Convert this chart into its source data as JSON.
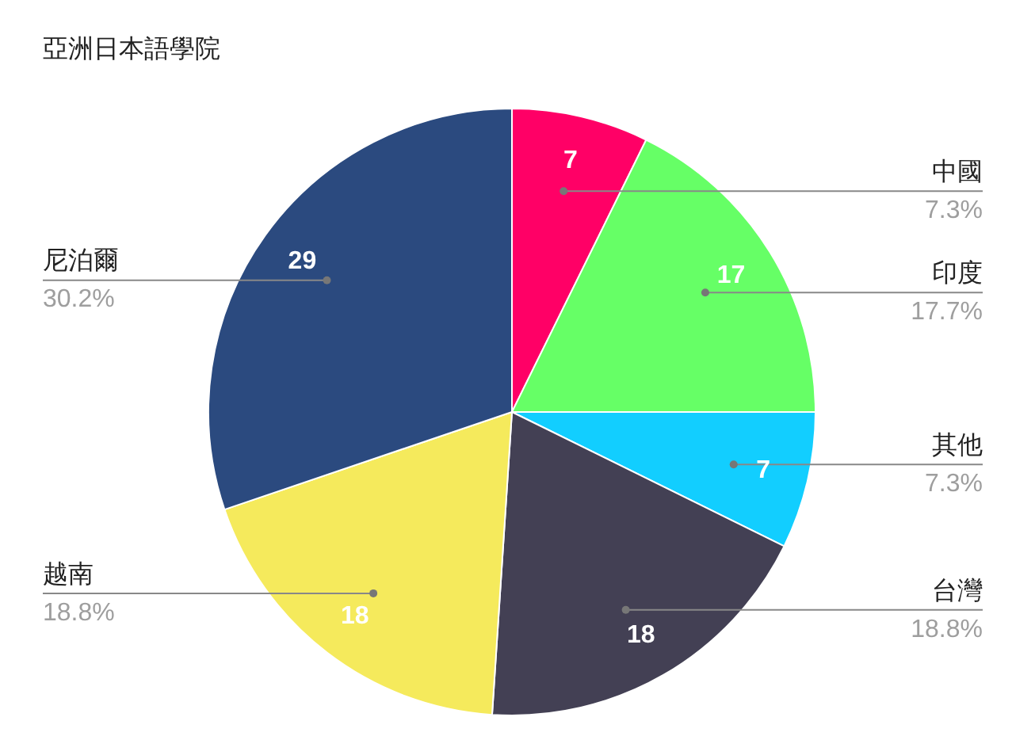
{
  "chart_data": {
    "type": "pie",
    "title": "亞洲日本語學院",
    "categories": [
      "中國",
      "印度",
      "其他",
      "台灣",
      "越南",
      "尼泊爾"
    ],
    "values": [
      7,
      17,
      7,
      18,
      18,
      29
    ],
    "colors": [
      "#ff0066",
      "#66ff66",
      "#12ceff",
      "#434054",
      "#f5ea5c",
      "#2b4a7f"
    ],
    "data_labels": true,
    "annotations": [
      "7.3%",
      "17.7%",
      "7.3%",
      "18.8%",
      "18.8%",
      "30.2%"
    ]
  }
}
